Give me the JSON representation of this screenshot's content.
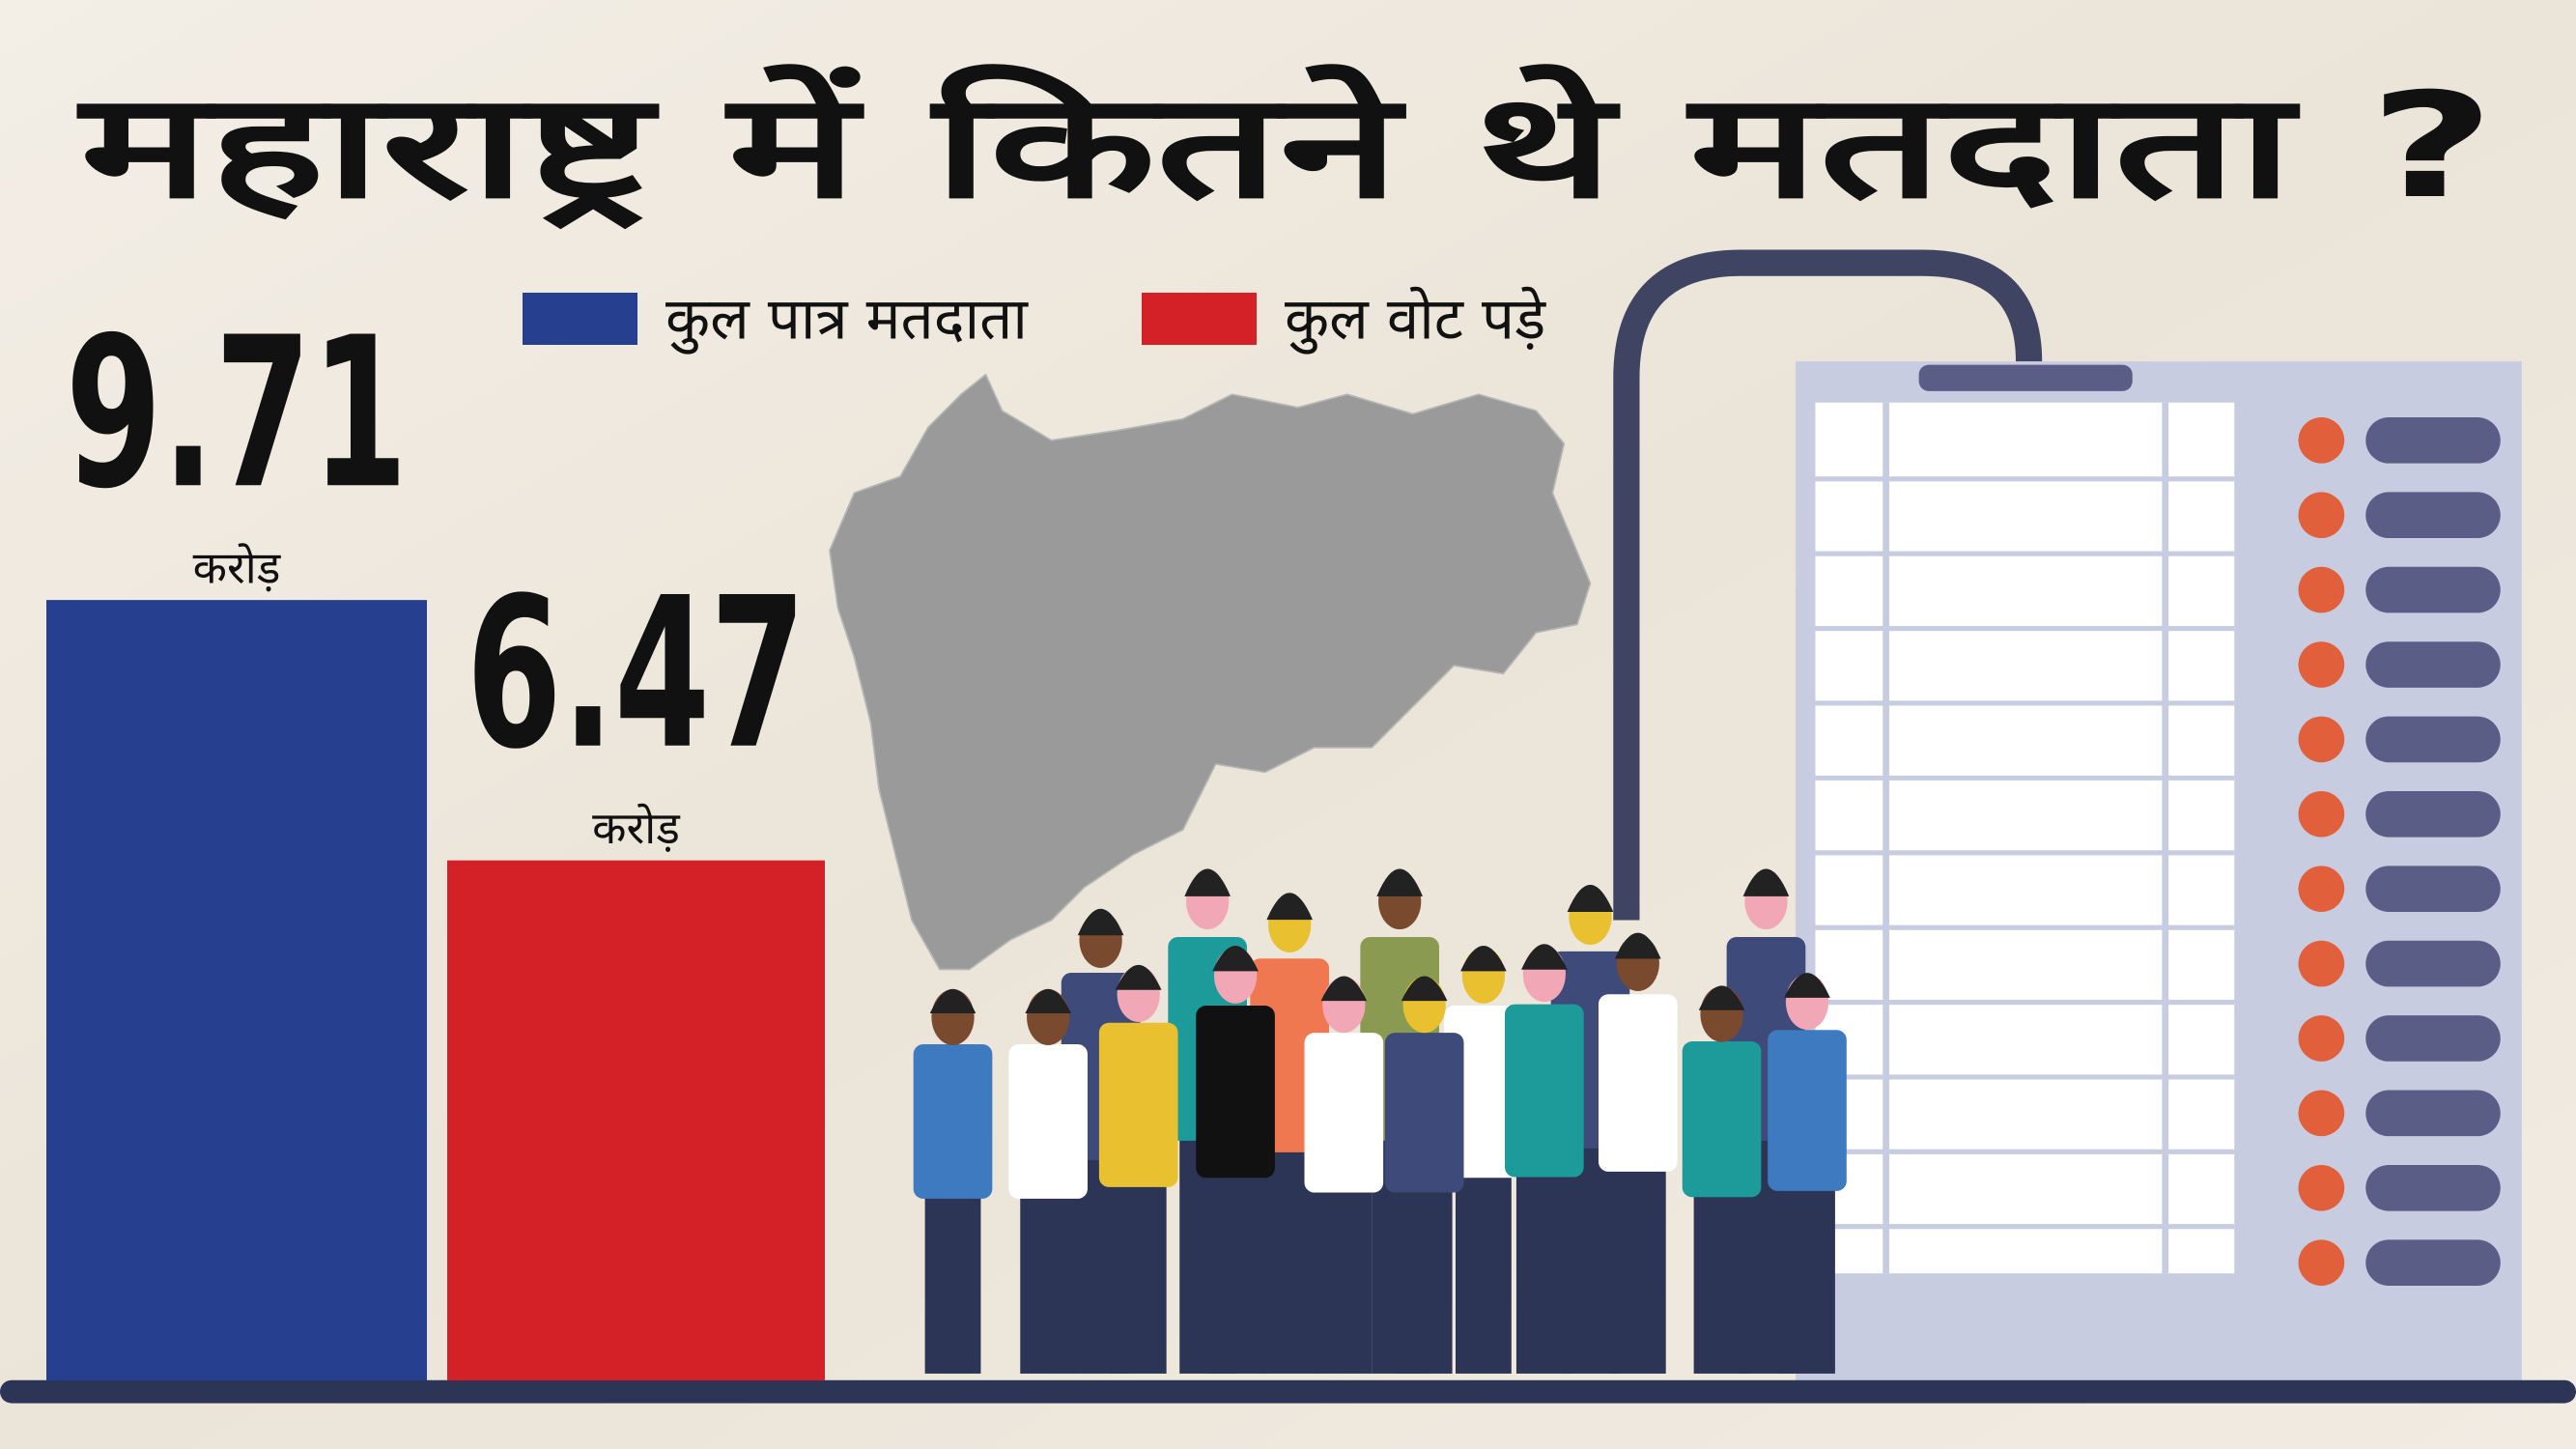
{
  "chart_data": {
    "type": "bar",
    "title": "महाराष्ट्र में कितने थे मतदाता ?",
    "unit": "करोड़",
    "series": [
      {
        "name": "कुल पात्र मतदाता",
        "color": "#263f8e",
        "values": [
          9.71
        ]
      },
      {
        "name": "कुल वोट पड़े",
        "color": "#d42027",
        "values": [
          6.47
        ]
      }
    ]
  }
}
